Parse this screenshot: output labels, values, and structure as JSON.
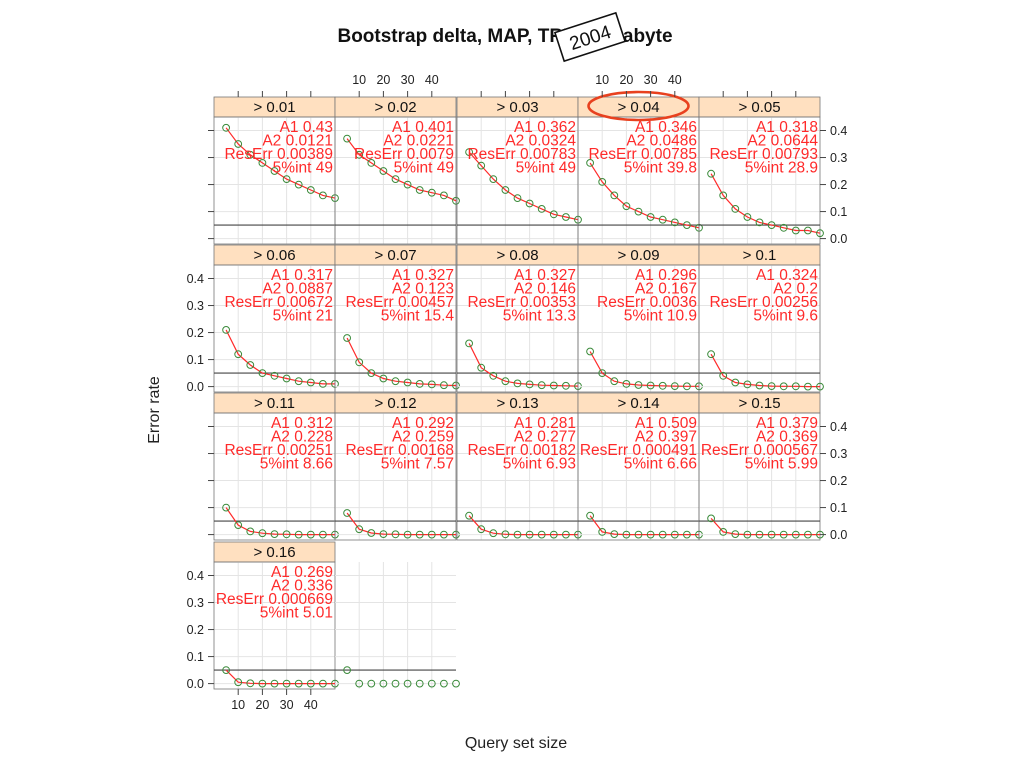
{
  "title": "Bootstrap delta, MAP, TREC Terabyte",
  "stamp_label": "2004",
  "highlighted_panel": "> 0.04",
  "colors": {
    "strip": "#ffe0c0",
    "point_stroke": "#3a8a3a",
    "fit_line": "#ff2a2a",
    "annotation": "#ff2a2a",
    "threshold_line": "#444444",
    "grid": "#e4e4e4",
    "highlight": "#e8411f"
  },
  "chart_data": {
    "type": "scatter",
    "layout": "trellis 5 columns x 4 rows",
    "xlabel": "Query set size",
    "ylabel": "Error rate",
    "xticks": [
      10,
      20,
      30,
      40
    ],
    "yticks": [
      "0.0",
      "0.1",
      "0.2",
      "0.3",
      "0.4"
    ],
    "xlim": [
      0,
      50
    ],
    "ylim": [
      -0.02,
      0.45
    ],
    "x": [
      5,
      10,
      15,
      20,
      25,
      30,
      35,
      40,
      45,
      50
    ],
    "reference_line": 0.05,
    "grid": true,
    "panels": [
      {
        "label": "> 0.01",
        "A1": "0.43",
        "A2": "0.0121",
        "ResErr": "0.00389",
        "int5": "49",
        "values": [
          0.41,
          0.35,
          0.31,
          0.28,
          0.25,
          0.22,
          0.2,
          0.18,
          0.16,
          0.15
        ]
      },
      {
        "label": "> 0.02",
        "A1": "0.401",
        "A2": "0.0221",
        "ResErr": "0.0079",
        "int5": "49",
        "values": [
          0.37,
          0.31,
          0.28,
          0.25,
          0.22,
          0.2,
          0.18,
          0.17,
          0.16,
          0.14
        ]
      },
      {
        "label": "> 0.03",
        "A1": "0.362",
        "A2": "0.0324",
        "ResErr": "0.00783",
        "int5": "49",
        "values": [
          0.32,
          0.27,
          0.22,
          0.18,
          0.15,
          0.13,
          0.11,
          0.09,
          0.08,
          0.07
        ]
      },
      {
        "label": "> 0.04",
        "A1": "0.346",
        "A2": "0.0486",
        "ResErr": "0.00785",
        "int5": "39.8",
        "values": [
          0.28,
          0.21,
          0.16,
          0.12,
          0.1,
          0.08,
          0.07,
          0.06,
          0.05,
          0.04
        ]
      },
      {
        "label": "> 0.05",
        "A1": "0.318",
        "A2": "0.0644",
        "ResErr": "0.00793",
        "int5": "28.9",
        "values": [
          0.24,
          0.16,
          0.11,
          0.08,
          0.06,
          0.05,
          0.04,
          0.03,
          0.03,
          0.02
        ]
      },
      {
        "label": "> 0.06",
        "A1": "0.317",
        "A2": "0.0887",
        "ResErr": "0.00672",
        "int5": "21",
        "values": [
          0.21,
          0.12,
          0.08,
          0.05,
          0.04,
          0.03,
          0.02,
          0.015,
          0.01,
          0.01
        ]
      },
      {
        "label": "> 0.07",
        "A1": "0.327",
        "A2": "0.123",
        "ResErr": "0.00457",
        "int5": "15.4",
        "values": [
          0.18,
          0.09,
          0.05,
          0.03,
          0.02,
          0.015,
          0.01,
          0.008,
          0.005,
          0.004
        ]
      },
      {
        "label": "> 0.08",
        "A1": "0.327",
        "A2": "0.146",
        "ResErr": "0.00353",
        "int5": "13.3",
        "values": [
          0.16,
          0.07,
          0.04,
          0.02,
          0.012,
          0.008,
          0.005,
          0.004,
          0.003,
          0.002
        ]
      },
      {
        "label": "> 0.09",
        "A1": "0.296",
        "A2": "0.167",
        "ResErr": "0.0036",
        "int5": "10.9",
        "values": [
          0.13,
          0.05,
          0.02,
          0.01,
          0.006,
          0.004,
          0.003,
          0.002,
          0.001,
          0.001
        ]
      },
      {
        "label": "> 0.1",
        "A1": "0.324",
        "A2": "0.2",
        "ResErr": "0.00256",
        "int5": "9.6",
        "values": [
          0.12,
          0.04,
          0.015,
          0.008,
          0.004,
          0.002,
          0.001,
          0.001,
          0.0,
          0.0
        ]
      },
      {
        "label": "> 0.11",
        "A1": "0.312",
        "A2": "0.228",
        "ResErr": "0.00251",
        "int5": "8.66",
        "values": [
          0.1,
          0.035,
          0.012,
          0.005,
          0.002,
          0.001,
          0.0,
          0.0,
          0.0,
          0.0
        ]
      },
      {
        "label": "> 0.12",
        "A1": "0.292",
        "A2": "0.259",
        "ResErr": "0.00168",
        "int5": "7.57",
        "values": [
          0.08,
          0.02,
          0.006,
          0.002,
          0.001,
          0.0,
          0.0,
          0.0,
          0.0,
          0.0
        ]
      },
      {
        "label": "> 0.13",
        "A1": "0.281",
        "A2": "0.277",
        "ResErr": "0.00182",
        "int5": "6.93",
        "values": [
          0.07,
          0.02,
          0.005,
          0.001,
          0.0,
          0.0,
          0.0,
          0.0,
          0.0,
          0.0
        ]
      },
      {
        "label": "> 0.14",
        "A1": "0.509",
        "A2": "0.397",
        "ResErr": "0.000491",
        "int5": "6.66",
        "values": [
          0.07,
          0.01,
          0.002,
          0.0,
          0.0,
          0.0,
          0.0,
          0.0,
          0.0,
          0.0
        ]
      },
      {
        "label": "> 0.15",
        "A1": "0.379",
        "A2": "0.369",
        "ResErr": "0.000567",
        "int5": "5.99",
        "values": [
          0.06,
          0.01,
          0.002,
          0.0,
          0.0,
          0.0,
          0.0,
          0.0,
          0.0,
          0.0
        ]
      },
      {
        "label": "> 0.16",
        "A1": "0.269",
        "A2": "0.336",
        "ResErr": "0.000669",
        "int5": "5.01",
        "values": [
          0.05,
          0.005,
          0.001,
          0.0,
          0.0,
          0.0,
          0.0,
          0.0,
          0.0,
          0.0
        ]
      },
      {
        "label": "",
        "A1": "",
        "A2": "",
        "ResErr": "",
        "int5": "",
        "no_strip": true,
        "values": [
          0.05,
          0.0,
          0.0,
          0.0,
          0.0,
          0.0,
          0.0,
          0.0,
          0.0,
          0.0
        ]
      }
    ]
  }
}
